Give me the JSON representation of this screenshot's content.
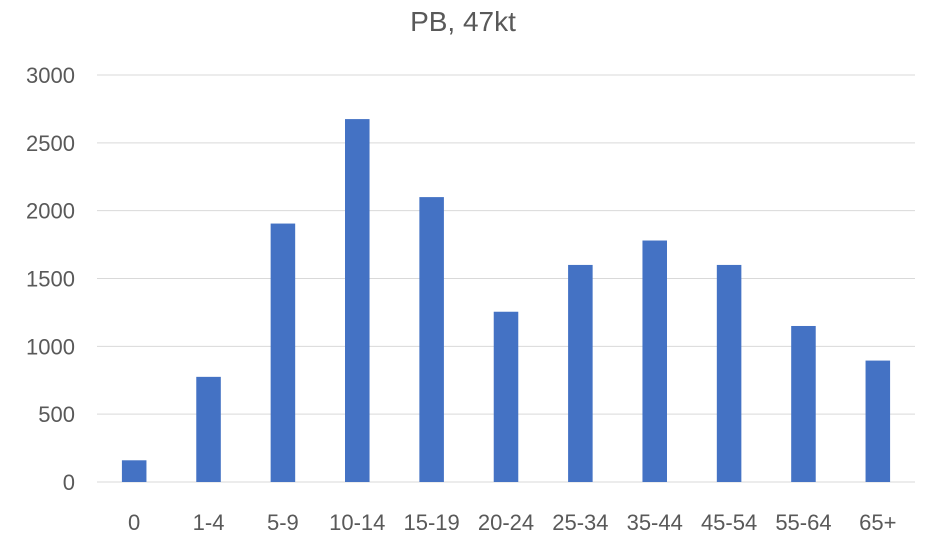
{
  "chart_data": {
    "type": "bar",
    "title": "PB, 47kt",
    "xlabel": "",
    "ylabel": "",
    "categories": [
      "0",
      "1-4",
      "5-9",
      "10-14",
      "15-19",
      "20-24",
      "25-34",
      "35-44",
      "45-54",
      "55-64",
      "65+"
    ],
    "values": [
      160,
      775,
      1905,
      2675,
      2100,
      1255,
      1600,
      1780,
      1600,
      1150,
      895
    ],
    "ylim": [
      0,
      3000
    ],
    "yticks": [
      "0",
      "500",
      "1000",
      "1500",
      "2000",
      "2500",
      "3000"
    ],
    "grid": true,
    "legend": "none",
    "bar_color": "#4472c4"
  }
}
